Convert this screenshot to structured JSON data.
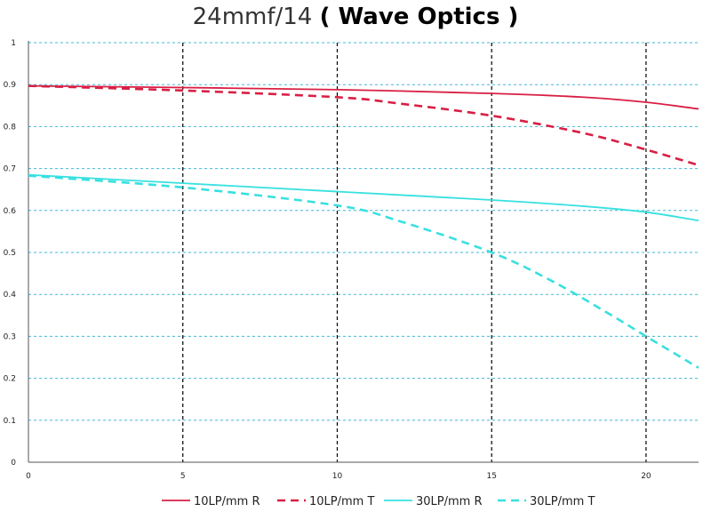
{
  "title": {
    "main": "24mmf/14",
    "sub": "( Wave Optics )"
  },
  "chart_data": {
    "type": "line",
    "title": "24mmf/14 ( Wave Optics )",
    "xlabel": "",
    "ylabel": "",
    "xlim": [
      0,
      21.7
    ],
    "ylim": [
      0,
      1
    ],
    "x_ticks": [
      0,
      5,
      10,
      15,
      20
    ],
    "y_ticks": [
      0,
      0.1,
      0.2,
      0.3,
      0.4,
      0.5,
      0.6,
      0.7,
      0.8,
      0.9,
      1
    ],
    "x_tick_labels": [
      "0",
      "5",
      "10",
      "15",
      "20"
    ],
    "y_tick_labels": [
      "0",
      "0.1",
      "0.2",
      "0.3",
      "0.4",
      "0.5",
      "0.6",
      "0.7",
      "0.8",
      "0.9",
      "1"
    ],
    "grid": {
      "horizontal": true,
      "vertical": true
    },
    "legend_position": "bottom",
    "series": [
      {
        "name": "10LP/mm R",
        "color": "#d81f44",
        "dash": "solid",
        "x": [
          0,
          5,
          10,
          15,
          18,
          20,
          21.7
        ],
        "y": [
          0.897,
          0.893,
          0.888,
          0.879,
          0.87,
          0.858,
          0.842
        ]
      },
      {
        "name": "10LP/mm T",
        "color": "#d81f44",
        "dash": "dashed",
        "x": [
          0,
          5,
          10,
          12,
          15,
          18,
          20,
          21.7
        ],
        "y": [
          0.897,
          0.886,
          0.87,
          0.855,
          0.826,
          0.784,
          0.745,
          0.708
        ]
      },
      {
        "name": "30LP/mm R",
        "color": "#38e0e0",
        "dash": "solid",
        "x": [
          0,
          5,
          10,
          15,
          18,
          20,
          21.7
        ],
        "y": [
          0.685,
          0.665,
          0.645,
          0.625,
          0.61,
          0.596,
          0.576
        ]
      },
      {
        "name": "30LP/mm T",
        "color": "#38e0e0",
        "dash": "dashed",
        "x": [
          0,
          5,
          10,
          12,
          15,
          17,
          19,
          20,
          21.7
        ],
        "y": [
          0.683,
          0.655,
          0.612,
          0.575,
          0.5,
          0.43,
          0.345,
          0.3,
          0.225
        ]
      }
    ]
  }
}
